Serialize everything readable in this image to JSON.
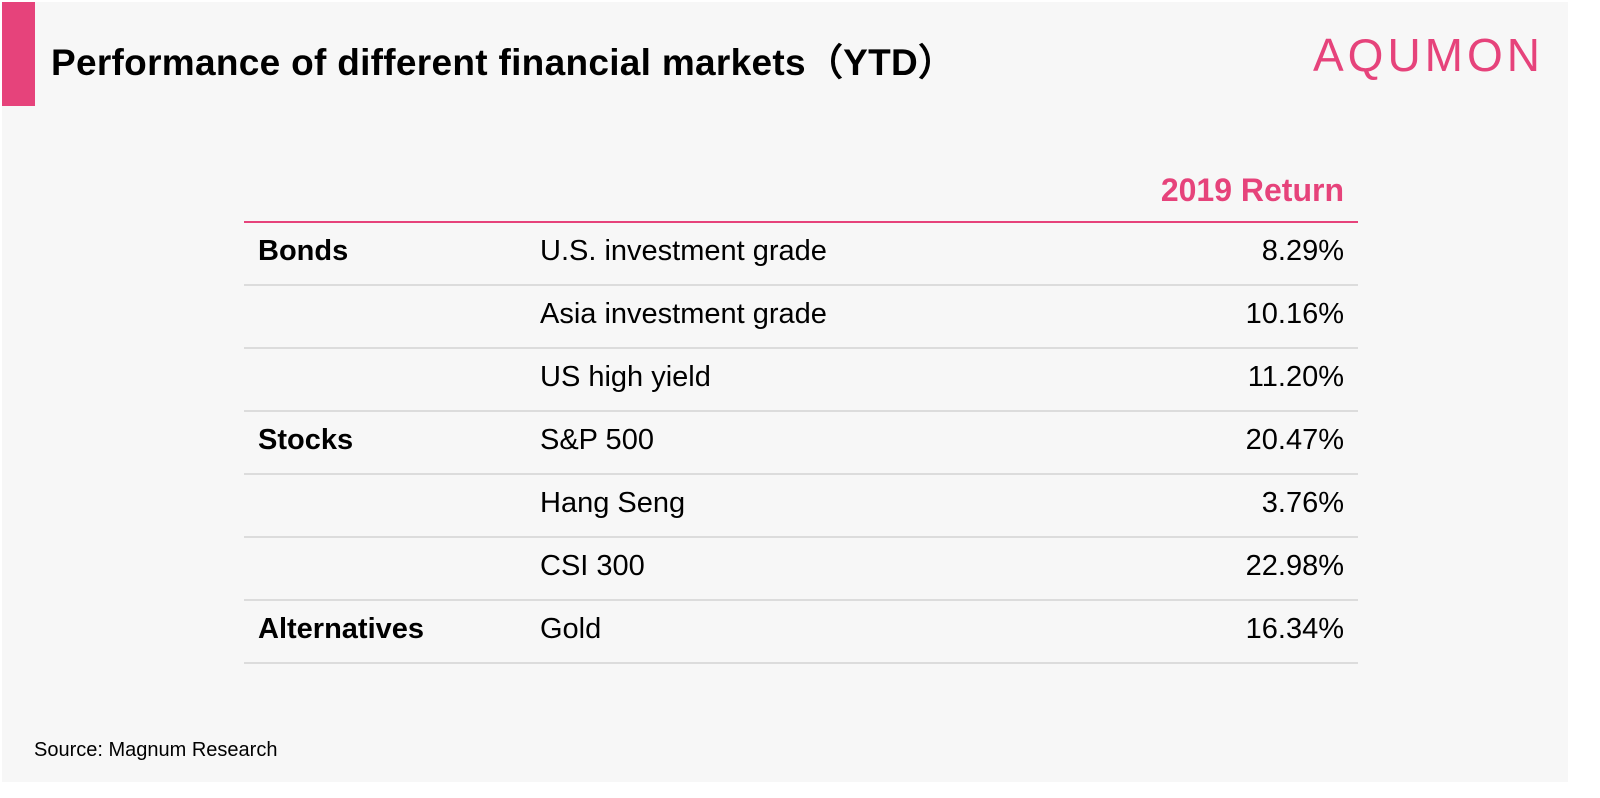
{
  "header": {
    "title": "Performance of different financial markets（YTD）",
    "logo": "AQUMON"
  },
  "table": {
    "column_header": "2019 Return",
    "rows": [
      {
        "category": "Bonds",
        "name": "U.S. investment grade",
        "value": "8.29%"
      },
      {
        "category": "",
        "name": "Asia investment grade",
        "value": "10.16%"
      },
      {
        "category": "",
        "name": "US high yield",
        "value": "11.20%"
      },
      {
        "category": "Stocks",
        "name": "S&P 500",
        "value": "20.47%"
      },
      {
        "category": "",
        "name": "Hang Seng",
        "value": "3.76%"
      },
      {
        "category": "",
        "name": "CSI 300",
        "value": "22.98%"
      },
      {
        "category": "Alternatives",
        "name": "Gold",
        "value": "16.34%"
      }
    ]
  },
  "footer": {
    "source": "Source: Magnum Research"
  },
  "colors": {
    "accent": "#e6437b",
    "background": "#f7f7f7",
    "divider": "#dcdcdc"
  }
}
